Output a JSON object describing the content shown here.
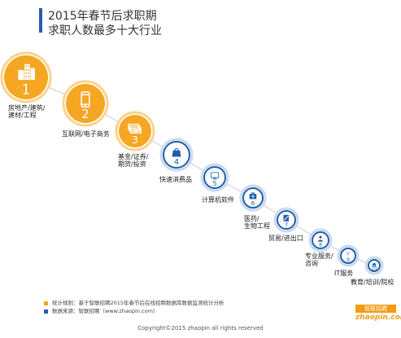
{
  "title": {
    "line1": "2015年春节后求职期",
    "line2": "求职人数最多十大行业"
  },
  "ranking": [
    {
      "rank": "1",
      "label_lines": [
        "房地产/建筑/",
        "建材/工程"
      ],
      "icon": "buildings-icon"
    },
    {
      "rank": "2",
      "label_lines": [
        "互联网/电子商务"
      ],
      "icon": "smartphone-icon"
    },
    {
      "rank": "3",
      "label_lines": [
        "基金/证券/",
        "期货/投资"
      ],
      "icon": "money-stack-icon"
    },
    {
      "rank": "4",
      "label_lines": [
        "快速消费品"
      ],
      "icon": "shopping-bag-icon"
    },
    {
      "rank": "5",
      "label_lines": [
        "计算机软件"
      ],
      "icon": "monitor-icon"
    },
    {
      "rank": "6",
      "label_lines": [
        "医药/",
        "生物工程"
      ],
      "icon": "medical-kit-icon"
    },
    {
      "rank": "7",
      "label_lines": [
        "贸易/进出口"
      ],
      "icon": "document-pen-icon"
    },
    {
      "rank": "8",
      "label_lines": [
        "专业服务/",
        "咨询"
      ],
      "icon": "consultant-icon"
    },
    {
      "rank": "9",
      "label_lines": [
        "IT服务"
      ],
      "icon": "it-text-icon"
    },
    {
      "rank": "10",
      "label_lines": [
        "教育/培训/院校"
      ],
      "icon": "graduation-cap-icon"
    }
  ],
  "colors": {
    "top_fill": "#f5a623",
    "top_ring": "#fbd38d",
    "top_number": "#ffffff",
    "rest_fill": "#1f5ea8",
    "rest_ring": "#c9d9ef",
    "rest_number": "#ffffff",
    "accent": "#2a5caa",
    "note_bullet1": "#f5a623",
    "note_bullet2": "#2a5caa"
  },
  "notes": {
    "stat_rule": "统计规则：基于智联招聘2015年春节后在线招聘数据库数据监测统计分析",
    "source": "数据来源：智联招聘（www.zhaopin.com）"
  },
  "copyright": "Copyright©2015 zhaopin all rights reserved",
  "logo": {
    "cn": "智联招聘",
    "en": "zhaopin.com"
  }
}
